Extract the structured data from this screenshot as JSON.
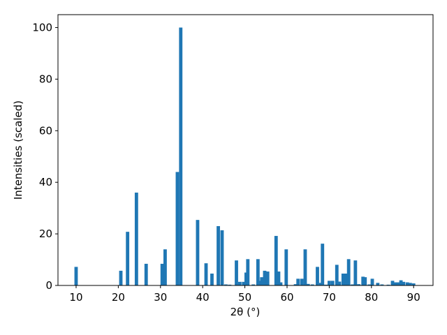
{
  "chart_data": {
    "type": "bar",
    "x_label": "2θ (°)",
    "y_label": "Intensities (scaled)",
    "color": "#1f77b4",
    "x": [
      10.0,
      20.6,
      22.2,
      24.3,
      26.6,
      30.4,
      31.1,
      34.0,
      34.8,
      38.8,
      40.8,
      42.2,
      43.7,
      44.6,
      45.5,
      46.4,
      48.0,
      48.8,
      49.7,
      50.3,
      50.7,
      52.0,
      53.1,
      53.5,
      54.0,
      54.7,
      55.4,
      57.4,
      58.0,
      58.5,
      59.8,
      62.0,
      62.6,
      63.5,
      64.3,
      65.0,
      66.0,
      67.2,
      68.0,
      68.4,
      69.2,
      70.0,
      70.8,
      71.8,
      72.4,
      73.3,
      74.0,
      74.6,
      75.5,
      76.2,
      77.0,
      78.0,
      78.5,
      79.5,
      80.2,
      81.5,
      82.5,
      84.0,
      85.0,
      85.6,
      86.3,
      87.0,
      87.6,
      88.5,
      89.2,
      90.0
    ],
    "values": [
      7.2,
      5.7,
      20.8,
      36,
      8.4,
      8.4,
      14,
      44,
      100,
      25.4,
      8.6,
      4.6,
      23,
      21.4,
      0.4,
      0.3,
      9.7,
      1.4,
      1.4,
      5,
      10.2,
      0.4,
      10.2,
      1.8,
      3.2,
      5.7,
      5.4,
      19.2,
      5.4,
      1.2,
      14,
      0.5,
      2.6,
      2.6,
      14,
      0.6,
      0.4,
      7.2,
      1.0,
      16.2,
      0.3,
      1.8,
      1.8,
      8,
      1.5,
      4.6,
      4.6,
      10.2,
      0.4,
      9.7,
      0.5,
      3.4,
      3.2,
      0.4,
      2.6,
      1.0,
      0.4,
      0.3,
      1.8,
      1.2,
      1.2,
      2.0,
      1.4,
      1.2,
      1.0,
      0.8
    ],
    "xlim": [
      5.7,
      94.6
    ],
    "ylim": [
      0,
      105
    ],
    "xticks": [
      10,
      20,
      30,
      40,
      50,
      60,
      70,
      80,
      90
    ],
    "yticks": [
      0,
      20,
      40,
      60,
      80,
      100
    ]
  }
}
